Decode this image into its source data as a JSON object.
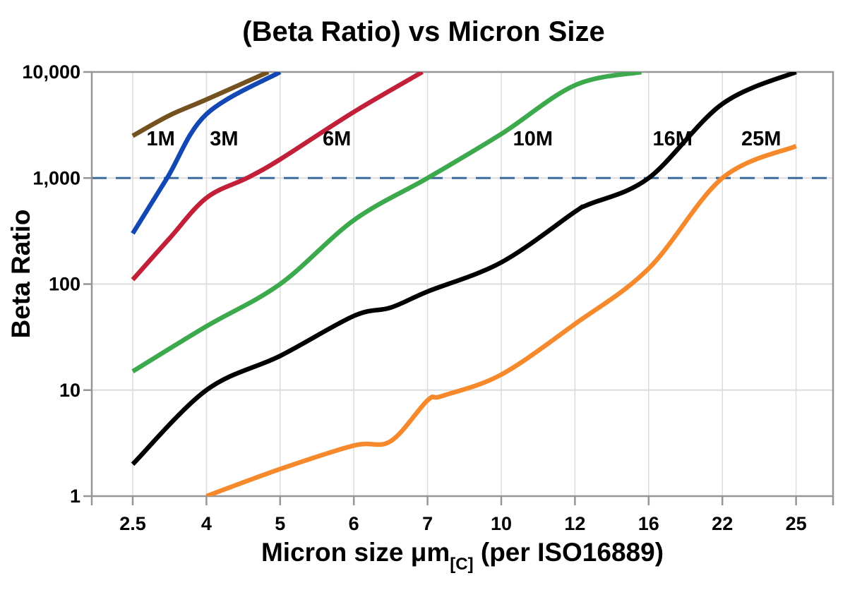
{
  "chart_data": {
    "type": "line",
    "title": "(Beta Ratio) vs Micron Size",
    "ylabel": "Beta Ratio",
    "xlabel": "Micron size μm[C] (per ISO16889)",
    "xlabel_parts": {
      "main": "Micron size μm",
      "subscript": "[C]",
      "rest": " (per ISO16889)"
    },
    "x_axis": {
      "scale": "categorical",
      "ticks": [
        2.5,
        4,
        5,
        6,
        7,
        10,
        12,
        16,
        22,
        25
      ],
      "labels": [
        "2.5",
        "4",
        "5",
        "6",
        "7",
        "10",
        "12",
        "16",
        "22",
        "25"
      ]
    },
    "y_axis": {
      "scale": "log",
      "min": 1,
      "max": 10000,
      "ticks": [
        1,
        10,
        100,
        1000,
        10000
      ],
      "labels": [
        "1",
        "10",
        "100",
        "1,000",
        "10,000"
      ]
    },
    "grid": {
      "show": true,
      "color": "#dcdcdc"
    },
    "axis_color": "#969696",
    "reference_line": {
      "beta": 1000,
      "style": "dashed",
      "color": "#3D6A9A"
    },
    "series": [
      {
        "name": "1M",
        "color": "#74511E",
        "label_anchor": {
          "micron": 3.07,
          "beta": 2400
        },
        "points": [
          [
            2.5,
            2500
          ],
          [
            3.25,
            3900
          ],
          [
            4,
            5500
          ],
          [
            4.84,
            10000
          ]
        ]
      },
      {
        "name": "3M",
        "color": "#1347B4",
        "label_anchor": {
          "micron": 4.24,
          "beta": 2400
        },
        "points": [
          [
            2.5,
            300
          ],
          [
            3.2,
            1000
          ],
          [
            4,
            4000
          ],
          [
            5,
            10000
          ]
        ]
      },
      {
        "name": "6M",
        "color": "#C21F38",
        "label_anchor": {
          "micron": 5.77,
          "beta": 2400
        },
        "points": [
          [
            2.5,
            110
          ],
          [
            3.25,
            270
          ],
          [
            4,
            650
          ],
          [
            4.55,
            1000
          ],
          [
            5,
            1500
          ],
          [
            6,
            4200
          ],
          [
            6.93,
            10000
          ]
        ]
      },
      {
        "name": "10M",
        "color": "#3BA94C",
        "label_anchor": {
          "micron": 10.86,
          "beta": 2400
        },
        "points": [
          [
            2.5,
            15
          ],
          [
            4,
            40
          ],
          [
            5,
            100
          ],
          [
            6,
            400
          ],
          [
            7,
            1000
          ],
          [
            10,
            2600
          ],
          [
            12,
            7500
          ],
          [
            15.6,
            10000
          ]
        ]
      },
      {
        "name": "16M",
        "color": "#000000",
        "label_anchor": {
          "micron": 17.95,
          "beta": 2400
        },
        "points": [
          [
            2.5,
            2
          ],
          [
            4,
            10
          ],
          [
            5,
            21
          ],
          [
            6,
            50
          ],
          [
            6.5,
            60
          ],
          [
            7,
            85
          ],
          [
            10,
            160
          ],
          [
            12,
            480
          ],
          [
            12.7,
            560
          ],
          [
            16,
            1000
          ],
          [
            22,
            5000
          ],
          [
            25,
            10000
          ]
        ]
      },
      {
        "name": "25M",
        "color": "#F6892B",
        "label_anchor": {
          "micron": 23.58,
          "beta": 2400
        },
        "points": [
          [
            4,
            1
          ],
          [
            5,
            1.8
          ],
          [
            6,
            3
          ],
          [
            6.5,
            3.3
          ],
          [
            7,
            8
          ],
          [
            7.6,
            8.8
          ],
          [
            10,
            14
          ],
          [
            12,
            42
          ],
          [
            16,
            140
          ],
          [
            22,
            1000
          ],
          [
            25,
            2000
          ]
        ]
      }
    ]
  }
}
